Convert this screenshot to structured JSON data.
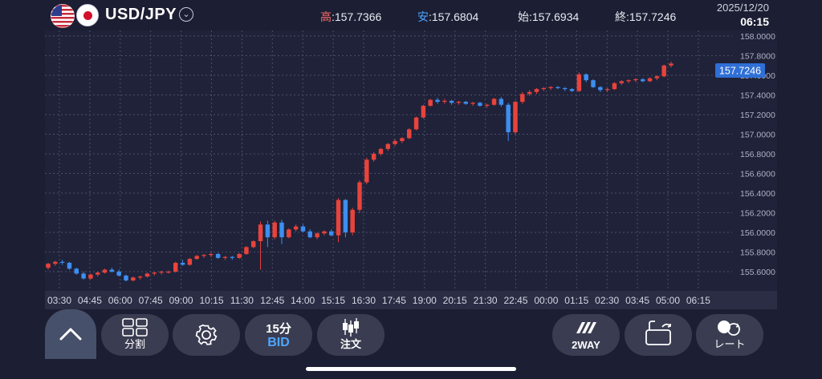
{
  "header": {
    "pair": "USD/JPY",
    "high_label": "高",
    "high_value": ":157.7366",
    "low_label": "安",
    "low_value": ":157.6804",
    "open_label": "始",
    "open_value": ":157.6934",
    "close_label": "終",
    "close_value": ":157.7246",
    "date": "2025/12/20",
    "time": "06:15"
  },
  "chart_data": {
    "type": "candlestick",
    "current_price": "157.7246",
    "y_ticks": [
      "158.0000",
      "157.8000",
      "157.6000",
      "157.4000",
      "157.2000",
      "157.0000",
      "156.8000",
      "156.6000",
      "156.4000",
      "156.2000",
      "156.0000",
      "155.8000",
      "155.6000"
    ],
    "ylim": [
      155.5,
      158.0
    ],
    "x_ticks": [
      "03:30",
      "04:45",
      "06:00",
      "07:45",
      "09:00",
      "10:15",
      "11:30",
      "12:45",
      "14:00",
      "15:15",
      "16:30",
      "17:45",
      "19:00",
      "20:15",
      "21:30",
      "22:45",
      "00:00",
      "01:15",
      "02:30",
      "03:45",
      "05:00",
      "06:15"
    ],
    "colors": {
      "up": "#e8433c",
      "down": "#3d8ef0"
    },
    "series_ohlc": [
      [
        155.64,
        155.69,
        155.62,
        155.68
      ],
      [
        155.68,
        155.71,
        155.66,
        155.7
      ],
      [
        155.7,
        155.72,
        155.67,
        155.69
      ],
      [
        155.69,
        155.7,
        155.62,
        155.63
      ],
      [
        155.63,
        155.64,
        155.57,
        155.58
      ],
      [
        155.58,
        155.6,
        155.52,
        155.53
      ],
      [
        155.53,
        155.58,
        155.52,
        155.57
      ],
      [
        155.57,
        155.6,
        155.55,
        155.59
      ],
      [
        155.59,
        155.63,
        155.58,
        155.62
      ],
      [
        155.62,
        155.64,
        155.59,
        155.6
      ],
      [
        155.6,
        155.62,
        155.55,
        155.56
      ],
      [
        155.56,
        155.57,
        155.5,
        155.51
      ],
      [
        155.51,
        155.55,
        155.5,
        155.54
      ],
      [
        155.54,
        155.56,
        155.52,
        155.55
      ],
      [
        155.55,
        155.59,
        155.54,
        155.58
      ],
      [
        155.58,
        155.6,
        155.56,
        155.59
      ],
      [
        155.59,
        155.61,
        155.57,
        155.6
      ],
      [
        155.6,
        155.61,
        155.58,
        155.6
      ],
      [
        155.6,
        155.7,
        155.59,
        155.69
      ],
      [
        155.69,
        155.72,
        155.66,
        155.67
      ],
      [
        155.67,
        155.74,
        155.66,
        155.73
      ],
      [
        155.73,
        155.77,
        155.72,
        155.76
      ],
      [
        155.76,
        155.78,
        155.74,
        155.77
      ],
      [
        155.77,
        155.79,
        155.75,
        155.78
      ],
      [
        155.78,
        155.79,
        155.73,
        155.74
      ],
      [
        155.74,
        155.76,
        155.72,
        155.75
      ],
      [
        155.75,
        155.76,
        155.72,
        155.74
      ],
      [
        155.74,
        155.79,
        155.73,
        155.78
      ],
      [
        155.78,
        155.86,
        155.77,
        155.85
      ],
      [
        155.85,
        155.92,
        155.84,
        155.91
      ],
      [
        155.91,
        156.11,
        155.62,
        156.08
      ],
      [
        156.08,
        156.12,
        155.85,
        155.95
      ],
      [
        155.95,
        156.12,
        155.93,
        156.1
      ],
      [
        156.1,
        156.13,
        155.88,
        155.95
      ],
      [
        155.95,
        156.04,
        155.94,
        156.03
      ],
      [
        156.03,
        156.08,
        156.01,
        156.06
      ],
      [
        156.06,
        156.08,
        156.0,
        156.01
      ],
      [
        156.01,
        156.03,
        155.94,
        155.95
      ],
      [
        155.95,
        156.0,
        155.93,
        155.99
      ],
      [
        155.99,
        156.02,
        155.97,
        156.01
      ],
      [
        156.01,
        156.03,
        155.96,
        155.97
      ],
      [
        155.97,
        156.35,
        155.9,
        156.33
      ],
      [
        156.33,
        156.34,
        155.95,
        156.0
      ],
      [
        156.0,
        156.25,
        155.97,
        156.23
      ],
      [
        156.23,
        156.53,
        156.2,
        156.51
      ],
      [
        156.51,
        156.76,
        156.49,
        156.74
      ],
      [
        156.74,
        156.82,
        156.72,
        156.8
      ],
      [
        156.8,
        156.86,
        156.78,
        156.85
      ],
      [
        156.85,
        156.91,
        156.83,
        156.9
      ],
      [
        156.9,
        156.95,
        156.88,
        156.93
      ],
      [
        156.93,
        156.97,
        156.91,
        156.96
      ],
      [
        156.96,
        157.06,
        156.95,
        157.05
      ],
      [
        157.05,
        157.18,
        157.04,
        157.17
      ],
      [
        157.17,
        157.3,
        157.16,
        157.29
      ],
      [
        157.29,
        157.36,
        157.28,
        157.35
      ],
      [
        157.35,
        157.37,
        157.31,
        157.33
      ],
      [
        157.33,
        157.36,
        157.31,
        157.34
      ],
      [
        157.34,
        157.35,
        157.3,
        157.32
      ],
      [
        157.32,
        157.34,
        157.3,
        157.33
      ],
      [
        157.33,
        157.34,
        157.3,
        157.31
      ],
      [
        157.31,
        157.33,
        157.29,
        157.32
      ],
      [
        157.32,
        157.33,
        157.28,
        157.29
      ],
      [
        157.29,
        157.31,
        157.27,
        157.3
      ],
      [
        157.3,
        157.37,
        157.29,
        157.36
      ],
      [
        157.36,
        157.38,
        157.28,
        157.3
      ],
      [
        157.3,
        157.32,
        156.93,
        157.02
      ],
      [
        157.02,
        157.34,
        157.0,
        157.33
      ],
      [
        157.33,
        157.43,
        157.31,
        157.41
      ],
      [
        157.41,
        157.45,
        157.39,
        157.43
      ],
      [
        157.43,
        157.47,
        157.41,
        157.46
      ],
      [
        157.46,
        157.48,
        157.44,
        157.47
      ],
      [
        157.47,
        157.49,
        157.45,
        157.48
      ],
      [
        157.48,
        157.49,
        157.46,
        157.47
      ],
      [
        157.47,
        157.48,
        157.44,
        157.46
      ],
      [
        157.46,
        157.47,
        157.43,
        157.44
      ],
      [
        157.44,
        157.63,
        157.43,
        157.61
      ],
      [
        157.61,
        157.62,
        157.53,
        157.55
      ],
      [
        157.55,
        157.56,
        157.47,
        157.48
      ],
      [
        157.48,
        157.49,
        157.43,
        157.45
      ],
      [
        157.45,
        157.47,
        157.43,
        157.46
      ],
      [
        157.46,
        157.53,
        157.45,
        157.52
      ],
      [
        157.52,
        157.55,
        157.5,
        157.54
      ],
      [
        157.54,
        157.56,
        157.52,
        157.55
      ],
      [
        157.55,
        157.57,
        157.53,
        157.56
      ],
      [
        157.56,
        157.57,
        157.53,
        157.54
      ],
      [
        157.54,
        157.58,
        157.53,
        157.57
      ],
      [
        157.57,
        157.6,
        157.55,
        157.59
      ],
      [
        157.59,
        157.71,
        157.58,
        157.7
      ],
      [
        157.7,
        157.74,
        157.68,
        157.72
      ]
    ]
  },
  "toolbar": {
    "split_label": "分割",
    "interval_label": "15分",
    "price_type": "BID",
    "order_label": "注文",
    "twoway_label": "2WAY",
    "rate_label": "レート"
  }
}
